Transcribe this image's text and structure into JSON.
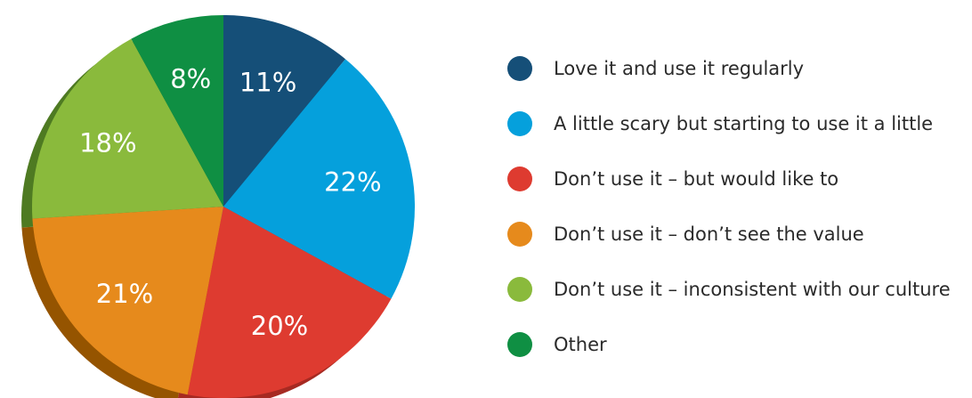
{
  "chart_data": {
    "type": "pie",
    "title": "",
    "legend_position": "right",
    "slices": [
      {
        "label": "Love it and use it regularly",
        "value": 11,
        "display": "11%",
        "color": "#154f78",
        "side": "#0e3a5a"
      },
      {
        "label": "A little scary but starting to use it a little",
        "value": 22,
        "display": "22%",
        "color": "#05a0dc",
        "side": "#03779f"
      },
      {
        "label": "Don’t use it – but would like to",
        "value": 20,
        "display": "20%",
        "color": "#de3b30",
        "side": "#a62a22"
      },
      {
        "label": "Don’t use it – don’t see the value",
        "value": 21,
        "display": "21%",
        "color": "#e68a1c",
        "side": "#955400"
      },
      {
        "label": "Don’t use it – inconsistent with our culture",
        "value": 18,
        "display": "18%",
        "color": "#8aba3c",
        "side": "#4e7a22"
      },
      {
        "label": "Other",
        "value": 8,
        "display": "8%",
        "color": "#0f8f43",
        "side": "#0a6430"
      }
    ]
  }
}
